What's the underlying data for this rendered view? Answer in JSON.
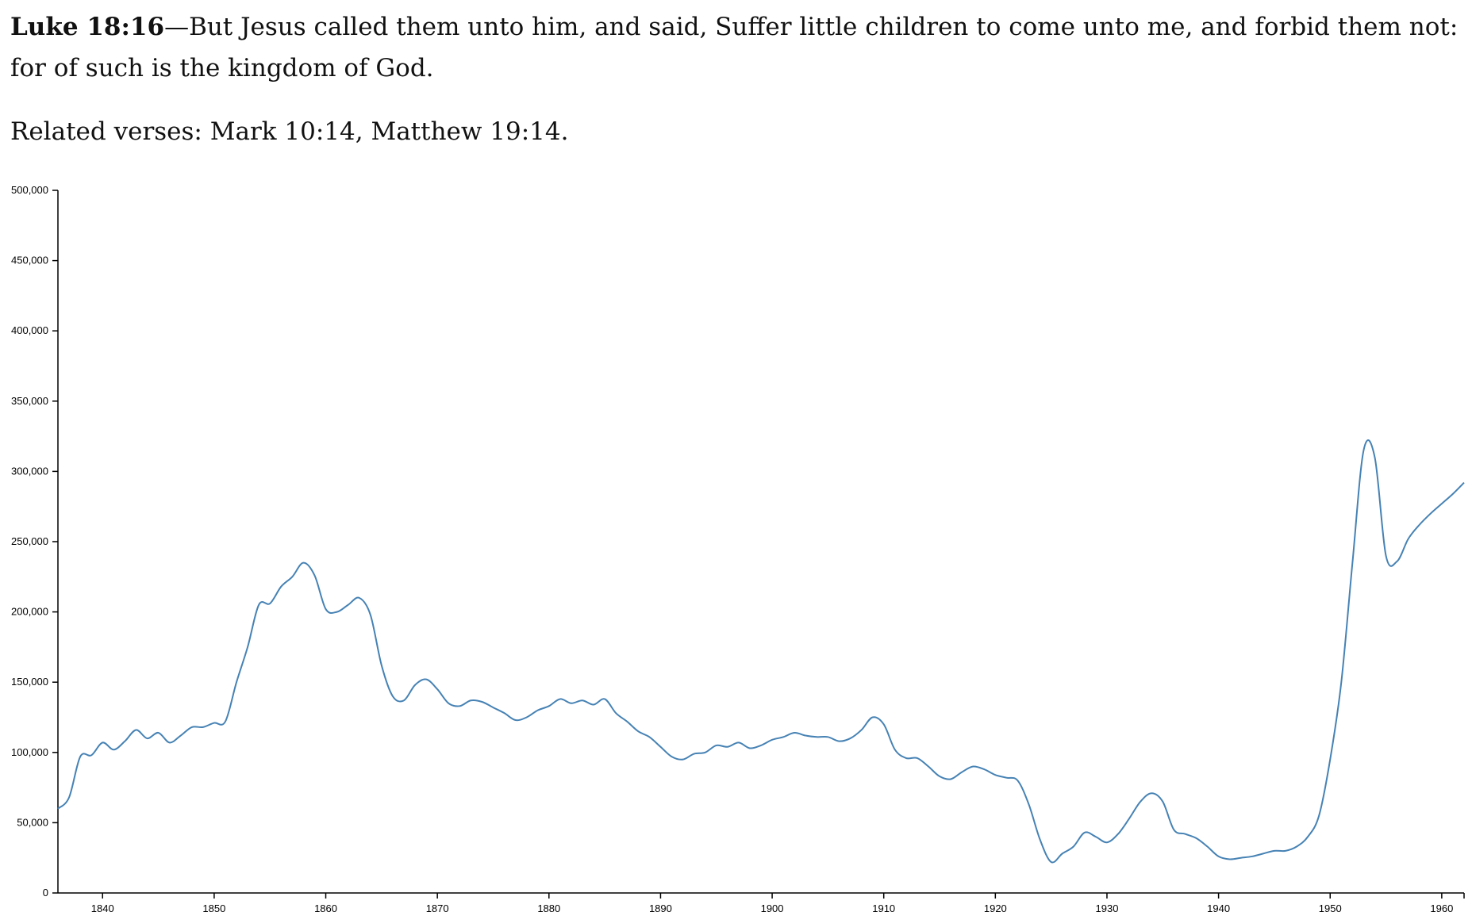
{
  "verse": {
    "reference": "Luke 18:16",
    "separator": "—",
    "text": "But Jesus called them unto him, and said, Suffer little children to come unto me, and forbid them not: for of such is the kingdom of God."
  },
  "related": {
    "text": "Related verses: Mark 10:14, Matthew 19:14."
  },
  "chart_data": {
    "type": "line",
    "title": "",
    "xlabel": "",
    "ylabel": "",
    "xlim": [
      1836,
      1962
    ],
    "ylim": [
      0,
      500000
    ],
    "grid": false,
    "line_color": "#4682b4",
    "x_ticks": [
      "1840",
      "1850",
      "1860",
      "1870",
      "1880",
      "1890",
      "1900",
      "1910",
      "1920",
      "1930",
      "1940",
      "1950",
      "1960"
    ],
    "x_tick_values": [
      1840,
      1850,
      1860,
      1870,
      1880,
      1890,
      1900,
      1910,
      1920,
      1930,
      1940,
      1950,
      1960
    ],
    "y_ticks": [
      "0",
      "50,000",
      "100,000",
      "150,000",
      "200,000",
      "250,000",
      "300,000",
      "350,000",
      "400,000",
      "450,000",
      "500,000"
    ],
    "y_tick_values": [
      0,
      50000,
      100000,
      150000,
      200000,
      250000,
      300000,
      350000,
      400000,
      450000,
      500000
    ],
    "series": [
      {
        "x": [
          1836,
          1837,
          1838,
          1839,
          1840,
          1841,
          1842,
          1843,
          1844,
          1845,
          1846,
          1847,
          1848,
          1849,
          1850,
          1851,
          1852,
          1853,
          1854,
          1855,
          1856,
          1857,
          1858,
          1859,
          1860,
          1861,
          1862,
          1863,
          1864,
          1865,
          1866,
          1867,
          1868,
          1869,
          1870,
          1871,
          1872,
          1873,
          1874,
          1875,
          1876,
          1877,
          1878,
          1879,
          1880,
          1881,
          1882,
          1883,
          1884,
          1885,
          1886,
          1887,
          1888,
          1889,
          1890,
          1891,
          1892,
          1893,
          1894,
          1895,
          1896,
          1897,
          1898,
          1899,
          1900,
          1901,
          1902,
          1903,
          1904,
          1905,
          1906,
          1907,
          1908,
          1909,
          1910,
          1911,
          1912,
          1913,
          1914,
          1915,
          1916,
          1917,
          1918,
          1919,
          1920,
          1921,
          1922,
          1923,
          1924,
          1925,
          1926,
          1927,
          1928,
          1929,
          1930,
          1931,
          1932,
          1933,
          1934,
          1935,
          1936,
          1937,
          1938,
          1939,
          1940,
          1941,
          1942,
          1943,
          1944,
          1945,
          1946,
          1947,
          1948,
          1949,
          1950,
          1951,
          1952,
          1953,
          1954,
          1955,
          1956,
          1957,
          1958,
          1959,
          1960,
          1961,
          1962
        ],
        "y": [
          60000,
          68000,
          97000,
          98000,
          107000,
          102000,
          108000,
          116000,
          110000,
          114000,
          107000,
          112000,
          118000,
          118000,
          121000,
          122000,
          150000,
          175000,
          205000,
          206000,
          218000,
          225000,
          235000,
          226000,
          202000,
          200000,
          205000,
          210000,
          198000,
          162000,
          140000,
          137000,
          148000,
          152000,
          145000,
          135000,
          133000,
          137000,
          136000,
          132000,
          128000,
          123000,
          125000,
          130000,
          133000,
          138000,
          135000,
          137000,
          134000,
          138000,
          128000,
          122000,
          115000,
          111000,
          104000,
          97000,
          95000,
          99000,
          100000,
          105000,
          104000,
          107000,
          103000,
          105000,
          109000,
          111000,
          114000,
          112000,
          111000,
          111000,
          108000,
          110000,
          116000,
          125000,
          120000,
          102000,
          96000,
          96000,
          90000,
          83000,
          81000,
          86000,
          90000,
          88000,
          84000,
          82000,
          80000,
          63000,
          38000,
          22000,
          28000,
          33000,
          43000,
          40000,
          36000,
          42000,
          53000,
          65000,
          71000,
          65000,
          45000,
          42000,
          39000,
          33000,
          26000,
          24000,
          25000,
          26000,
          28000,
          30000,
          30000,
          33000,
          40000,
          55000,
          95000,
          150000,
          235000,
          315000,
          310000,
          240000,
          236000,
          252000,
          262000,
          270000,
          277000,
          284000,
          292000
        ]
      }
    ]
  }
}
